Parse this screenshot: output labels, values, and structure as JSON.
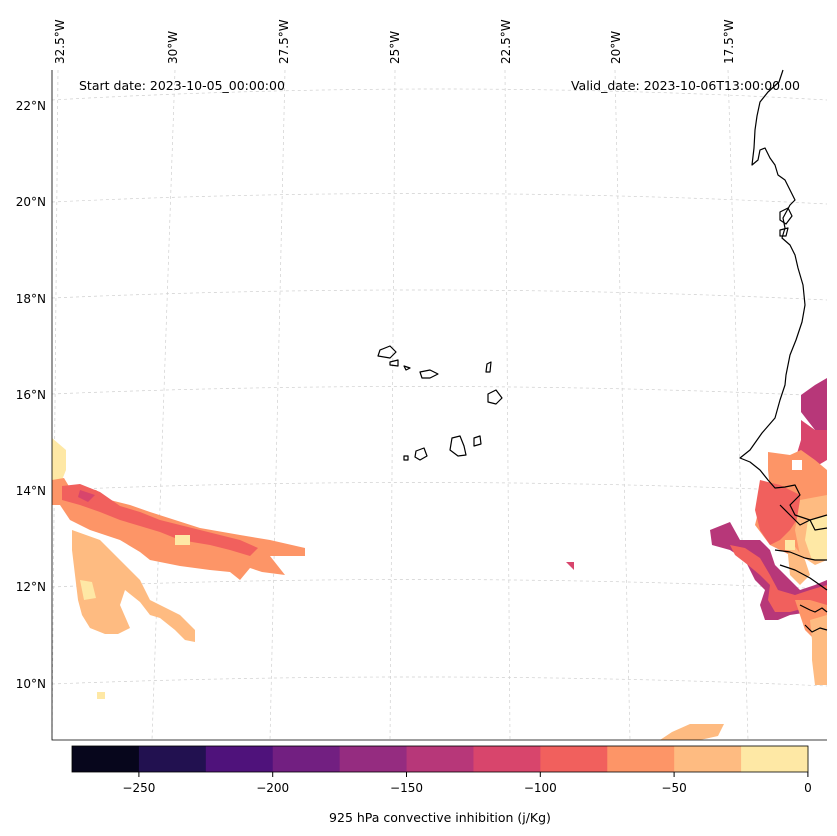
{
  "map": {
    "start_date": "Start date: 2023-10-05_00:00:00",
    "valid_date": "Valid_date: 2023-10-06T13:00:00.00",
    "lon_labels": [
      "32.5°W",
      "30°W",
      "27.5°W",
      "25°W",
      "22.5°W",
      "20°W",
      "17.5°W"
    ],
    "lat_labels": [
      "22°N",
      "20°N",
      "18°N",
      "16°N",
      "14°N",
      "12°N",
      "10°N"
    ]
  },
  "colorbar": {
    "label": "925 hPa convective inhibition (j/Kg)",
    "ticks": [
      "−250",
      "−200",
      "−150",
      "−100",
      "−50",
      "0"
    ],
    "colors": [
      "#07061c",
      "#221150",
      "#4f127b",
      "#721f81",
      "#952c80",
      "#b73779",
      "#d8456c",
      "#f1605d",
      "#fd9567",
      "#febb81",
      "#fee8a5"
    ]
  },
  "palette": {
    "c1": "#fee8a5",
    "c2": "#febb81",
    "c3": "#fd9567",
    "c4": "#f1605d",
    "c5": "#d8456c",
    "c6": "#b73779"
  }
}
